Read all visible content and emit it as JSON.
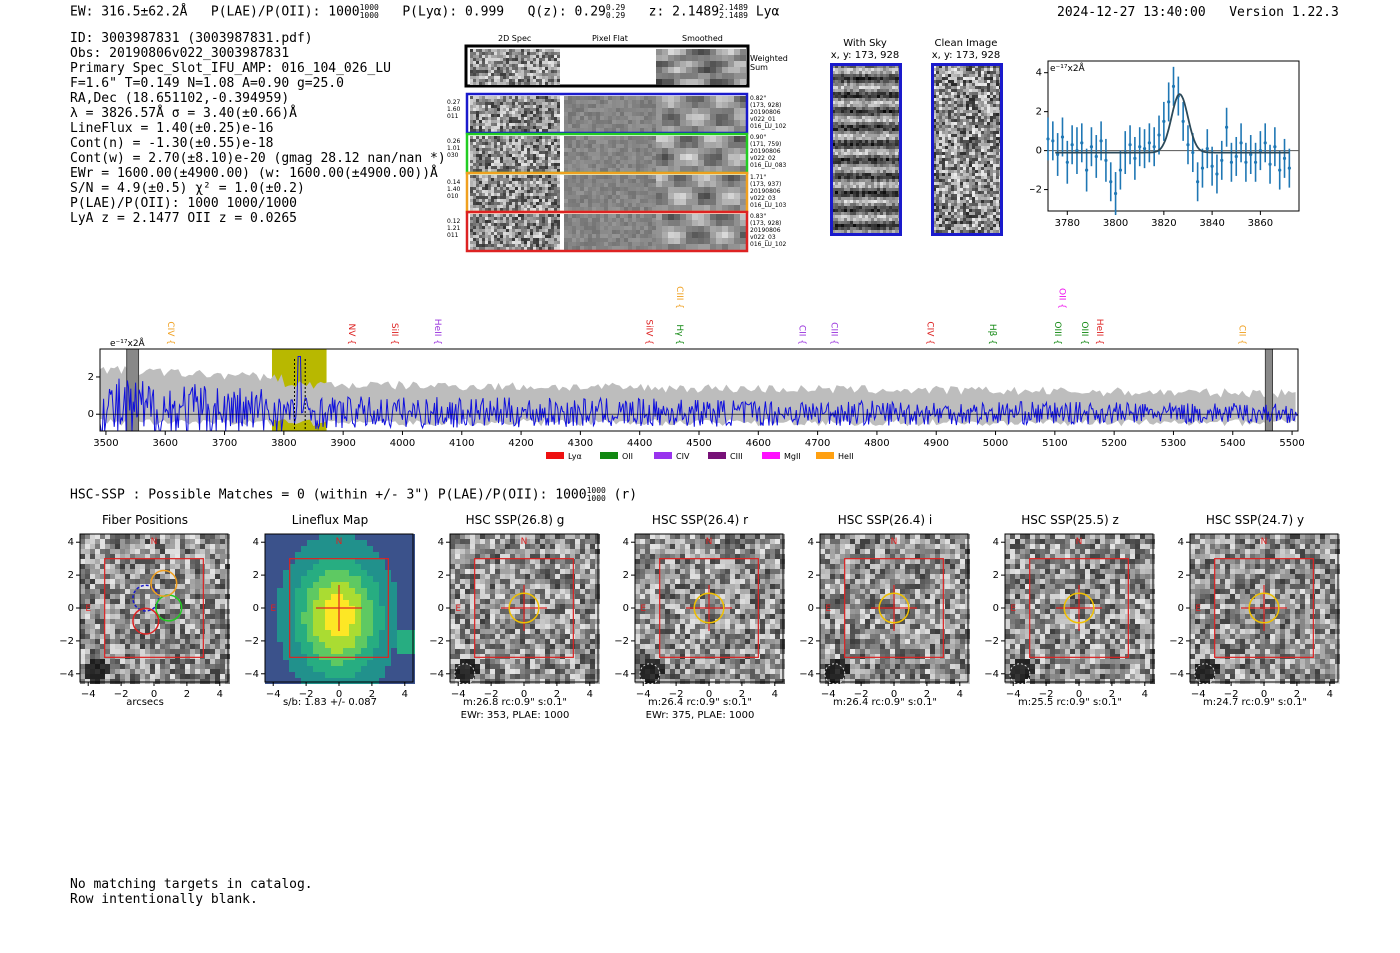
{
  "header": {
    "ew": "EW: 316.5±62.2Å",
    "plae_label": "P(LAE)/P(OII): 1000",
    "plae_sup": "1000",
    "plae_sub": "1000",
    "plya": "P(Lyα): 0.999",
    "qz_label": "Q(z): 0.29",
    "qz_sup": "0.29",
    "qz_sub": "0.29",
    "z_label": "z: 2.1489",
    "z_sup": "2.1489",
    "z_sub": "2.1489",
    "line": "Lyα",
    "datetime": "2024-12-27 13:40:00",
    "version": "Version 1.22.3"
  },
  "info": {
    "lines": [
      "ID: 3003987831 (3003987831.pdf)",
      "Obs: 20190806v022_3003987831",
      "Primary Spec_Slot_IFU_AMP: 016_104_026_LU",
      "F=1.6\"  T=0.149  N=1.08  A=0.90  g=25.0",
      "RA,Dec (18.651102,-0.394959)",
      "λ = 3826.57Å   σ = 3.40(±0.66)Å",
      "LineFlux = 1.40(±0.25)e-16",
      "Cont(n) = -1.30(±0.55)e-18",
      "Cont(w) = 2.70(±8.10)e-20 (gmag 28.12 nan/nan *)",
      "EWr = 1600.00(±4900.00) (w: 1600.00(±4900.00))Å",
      "S/N = 4.9(±0.5)  χ² = 1.0(±0.2)",
      "P(LAE)/P(OII): 1000 1000/1000",
      "LyA z = 2.1477  OII z = 0.0265"
    ]
  },
  "cutouts": {
    "col_headers": [
      "2D Spec",
      "Pixel Flat",
      "Smoothed"
    ],
    "weighted_label": "Weighted Sum",
    "rows": [
      {
        "left": [
          "0.27",
          "1.60",
          "011"
        ],
        "right": [
          "0.82\"",
          "(173, 928)",
          "20190806",
          "v022_01",
          "016_LU_102"
        ],
        "color": "#1a1acc"
      },
      {
        "left": [
          "0.26",
          "1.01",
          "030"
        ],
        "right": [
          "0.90\"",
          "(171, 759)",
          "20190806",
          "v022_02",
          "016_LU_083"
        ],
        "color": "#22cc22"
      },
      {
        "left": [
          "0.14",
          "1.40",
          "010"
        ],
        "right": [
          "1.71\"",
          "(173, 937)",
          "20190806",
          "v022_03",
          "016_LU_103"
        ],
        "color": "#f0a020"
      },
      {
        "left": [
          "0.12",
          "1.21",
          "011"
        ],
        "right": [
          "0.83\"",
          "(173, 928)",
          "20190806",
          "v022_03",
          "016_LU_102"
        ],
        "color": "#dd2222"
      }
    ]
  },
  "sky": {
    "with_sky_title": "With Sky",
    "with_sky_coords": "x, y: 173, 928",
    "clean_title": "Clean Image",
    "clean_coords": "x, y: 173, 928"
  },
  "chart_data": [
    {
      "type": "line",
      "title": "",
      "ylabel": "e⁻¹⁷x2Å",
      "xlim": [
        3772,
        3876
      ],
      "ylim": [
        -3.1,
        4.6
      ],
      "xticks": [
        3780,
        3800,
        3820,
        3840,
        3860
      ],
      "yticks": [
        -2,
        0,
        2,
        4
      ],
      "series": [
        {
          "name": "data",
          "x": [
            3772,
            3774,
            3776,
            3778,
            3780,
            3782,
            3784,
            3786,
            3788,
            3790,
            3792,
            3794,
            3796,
            3798,
            3800,
            3802,
            3804,
            3806,
            3808,
            3810,
            3812,
            3814,
            3816,
            3818,
            3820,
            3822,
            3824,
            3826,
            3828,
            3830,
            3832,
            3834,
            3836,
            3838,
            3840,
            3842,
            3844,
            3846,
            3848,
            3850,
            3852,
            3854,
            3856,
            3858,
            3860,
            3862,
            3864,
            3866,
            3868,
            3870,
            3872
          ],
          "y": [
            0.6,
            0.5,
            -0.2,
            0.7,
            -0.6,
            0.3,
            0.0,
            0.4,
            -1.0,
            0.2,
            -0.3,
            0.5,
            -0.5,
            -1.6,
            -2.2,
            -1.0,
            -0.1,
            0.3,
            -0.4,
            0.2,
            0.1,
            0.4,
            0.2,
            0.8,
            1.5,
            2.5,
            3.3,
            2.8,
            1.5,
            0.3,
            -0.1,
            -1.6,
            -0.9,
            0.1,
            -0.8,
            -1.2,
            -0.5,
            1.2,
            -0.6,
            -0.3,
            0.4,
            -0.6,
            -0.2,
            -0.6,
            0.0,
            0.4,
            -0.7,
            0.2,
            -1.0,
            -0.4,
            -0.9
          ],
          "yerr": [
            1.1,
            1.0,
            1.1,
            1.0,
            1.1,
            1.0,
            1.2,
            1.0,
            1.1,
            1.0,
            1.1,
            1.0,
            1.1,
            1.0,
            1.1,
            1.0,
            1.1,
            1.0,
            1.1,
            1.0,
            1.0,
            1.0,
            1.0,
            1.0,
            1.0,
            1.0,
            1.0,
            1.0,
            1.0,
            1.0,
            1.0,
            1.0,
            1.0,
            1.0,
            1.0,
            1.0,
            1.0,
            1.0,
            1.0,
            1.0,
            1.0,
            1.0,
            1.0,
            1.0,
            1.0,
            1.0,
            1.0,
            1.0,
            1.0,
            1.0,
            1.0
          ]
        },
        {
          "name": "gaussian fit",
          "center": 3826.57,
          "sigma": 3.4,
          "amplitude": 3.0,
          "baseline": -0.1
        }
      ]
    },
    {
      "type": "line",
      "title": "",
      "ylabel": "e⁻¹⁷x2Å",
      "xlim": [
        3490,
        5510
      ],
      "ylim": [
        -0.9,
        3.5
      ],
      "xticks": [
        3500,
        3600,
        3700,
        3800,
        3900,
        4000,
        4100,
        4200,
        4300,
        4400,
        4500,
        4600,
        4700,
        4800,
        4900,
        5000,
        5100,
        5200,
        5300,
        5400,
        5500
      ],
      "yticks": [
        0,
        2
      ],
      "highlight_range": [
        3780,
        3872
      ],
      "series": [
        {
          "name": "spectrum",
          "color": "#1010dd"
        },
        {
          "name": "noise",
          "color": "#bbbbbb"
        }
      ],
      "line_markers": [
        {
          "name": "CIV",
          "wave": 3600,
          "color": "#f0a020",
          "level": 1
        },
        {
          "name": "NV",
          "wave": 3905,
          "color": "#dd2222",
          "level": 1
        },
        {
          "name": "SiII",
          "wave": 3977,
          "color": "#dd2222",
          "level": 1
        },
        {
          "name": "HeII",
          "wave": 4050,
          "color": "#9933dd",
          "level": 1
        },
        {
          "name": "SiIV",
          "wave": 4406,
          "color": "#dd2222",
          "level": 1
        },
        {
          "name": "CIII",
          "wave": 4458,
          "color": "#f0a020",
          "level": 2
        },
        {
          "name": "Hγ",
          "wave": 4458,
          "color": "#118811",
          "level": 1
        },
        {
          "name": "CII",
          "wave": 4664,
          "color": "#9933dd",
          "level": 1
        },
        {
          "name": "CIII",
          "wave": 4718,
          "color": "#9933dd",
          "level": 1
        },
        {
          "name": "CIV",
          "wave": 4880,
          "color": "#dd2222",
          "level": 1
        },
        {
          "name": "Hβ",
          "wave": 4986,
          "color": "#118811",
          "level": 1
        },
        {
          "name": "OII",
          "wave": 5103,
          "color": "#ee11ee",
          "level": 2
        },
        {
          "name": "OIII",
          "wave": 5095,
          "color": "#118811",
          "level": 1
        },
        {
          "name": "OIII",
          "wave": 5141,
          "color": "#118811",
          "level": 1
        },
        {
          "name": "HeII",
          "wave": 5166,
          "color": "#dd2222",
          "level": 1
        },
        {
          "name": "CII",
          "wave": 5406,
          "color": "#f0a020",
          "level": 1
        }
      ],
      "legend": [
        {
          "label": "Lyα",
          "color": "#ee1111"
        },
        {
          "label": "OII",
          "color": "#118811"
        },
        {
          "label": "CIV",
          "color": "#9933ee"
        },
        {
          "label": "CIII",
          "color": "#771177"
        },
        {
          "label": "MgII",
          "color": "#ff11ff"
        },
        {
          "label": "HeII",
          "color": "#ffa011"
        }
      ]
    }
  ],
  "hsc": {
    "summary_label": "HSC-SSP : Possible Matches = 0 (within +/- 3\")  P(LAE)/P(OII): 1000",
    "summary_sup": "1000",
    "summary_sub": "1000",
    "summary_band": "(r)",
    "tick_labels_x": [
      "−4",
      "−2",
      "0",
      "2",
      "4"
    ],
    "tick_labels_y": [
      "4",
      "2",
      "0",
      "−2",
      "−4"
    ],
    "north": "N",
    "east": "E",
    "panels": [
      {
        "title": "Fiber Positions",
        "caption1": "arcsecs",
        "caption2": ""
      },
      {
        "title": "Lineflux Map",
        "caption1": "s/b: 1.83 +/- 0.087",
        "caption2": ""
      },
      {
        "title": "HSC SSP(26.8) g",
        "caption1": "m:26.8 rc:0.9\"  s:0.1\"",
        "caption2": "EWr: 353, PLAE: 1000"
      },
      {
        "title": "HSC SSP(26.4) r",
        "caption1": "m:26.4 rc:0.9\"  s:0.1\"",
        "caption2": "EWr: 375, PLAE: 1000"
      },
      {
        "title": "HSC SSP(26.4) i",
        "caption1": "m:26.4 rc:0.9\"  s:0.1\"",
        "caption2": ""
      },
      {
        "title": "HSC SSP(25.5) z",
        "caption1": "m:25.5 rc:0.9\"  s:0.1\"",
        "caption2": ""
      },
      {
        "title": "HSC SSP(24.7) y",
        "caption1": "m:24.7 rc:0.9\"  s:0.1\"",
        "caption2": ""
      }
    ]
  },
  "footer": {
    "line1": "No matching targets in catalog.",
    "line2": "Row intentionally blank."
  }
}
